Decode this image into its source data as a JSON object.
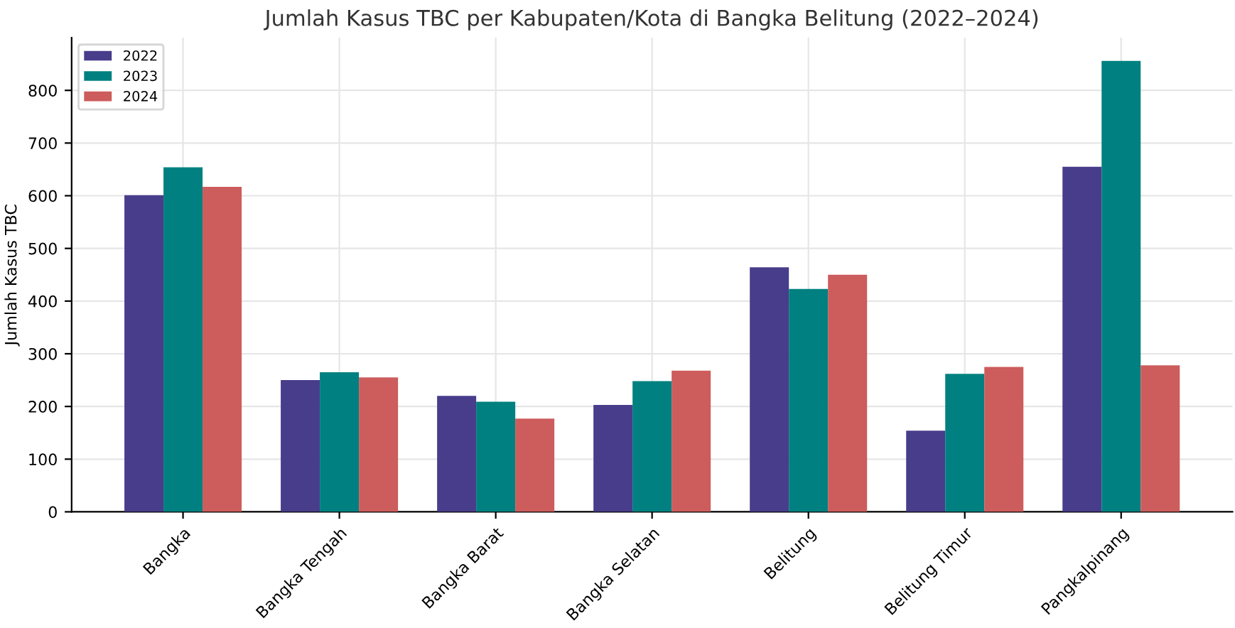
{
  "chart_data": {
    "type": "bar",
    "title": "Jumlah Kasus TBC per Kabupaten/Kota di Bangka Belitung (2022–2024)",
    "ylabel": "Jumlah Kasus TBC",
    "categories": [
      "Bangka",
      "Bangka Tengah",
      "Bangka Barat",
      "Bangka Selatan",
      "Belitung",
      "Belitung Timur",
      "Pangkalpinang"
    ],
    "series": [
      {
        "name": "2022",
        "color": "#483d8b",
        "values": [
          601,
          250,
          220,
          203,
          464,
          154,
          655
        ]
      },
      {
        "name": "2023",
        "color": "#008080",
        "values": [
          654,
          265,
          209,
          248,
          423,
          262,
          856
        ]
      },
      {
        "name": "2024",
        "color": "#cd5c5c",
        "values": [
          617,
          255,
          177,
          268,
          450,
          275,
          278
        ]
      }
    ],
    "ylim": [
      0,
      900
    ],
    "yticks": [
      0,
      100,
      200,
      300,
      400,
      500,
      600,
      700,
      800
    ],
    "grid": true,
    "legend": "top left"
  }
}
